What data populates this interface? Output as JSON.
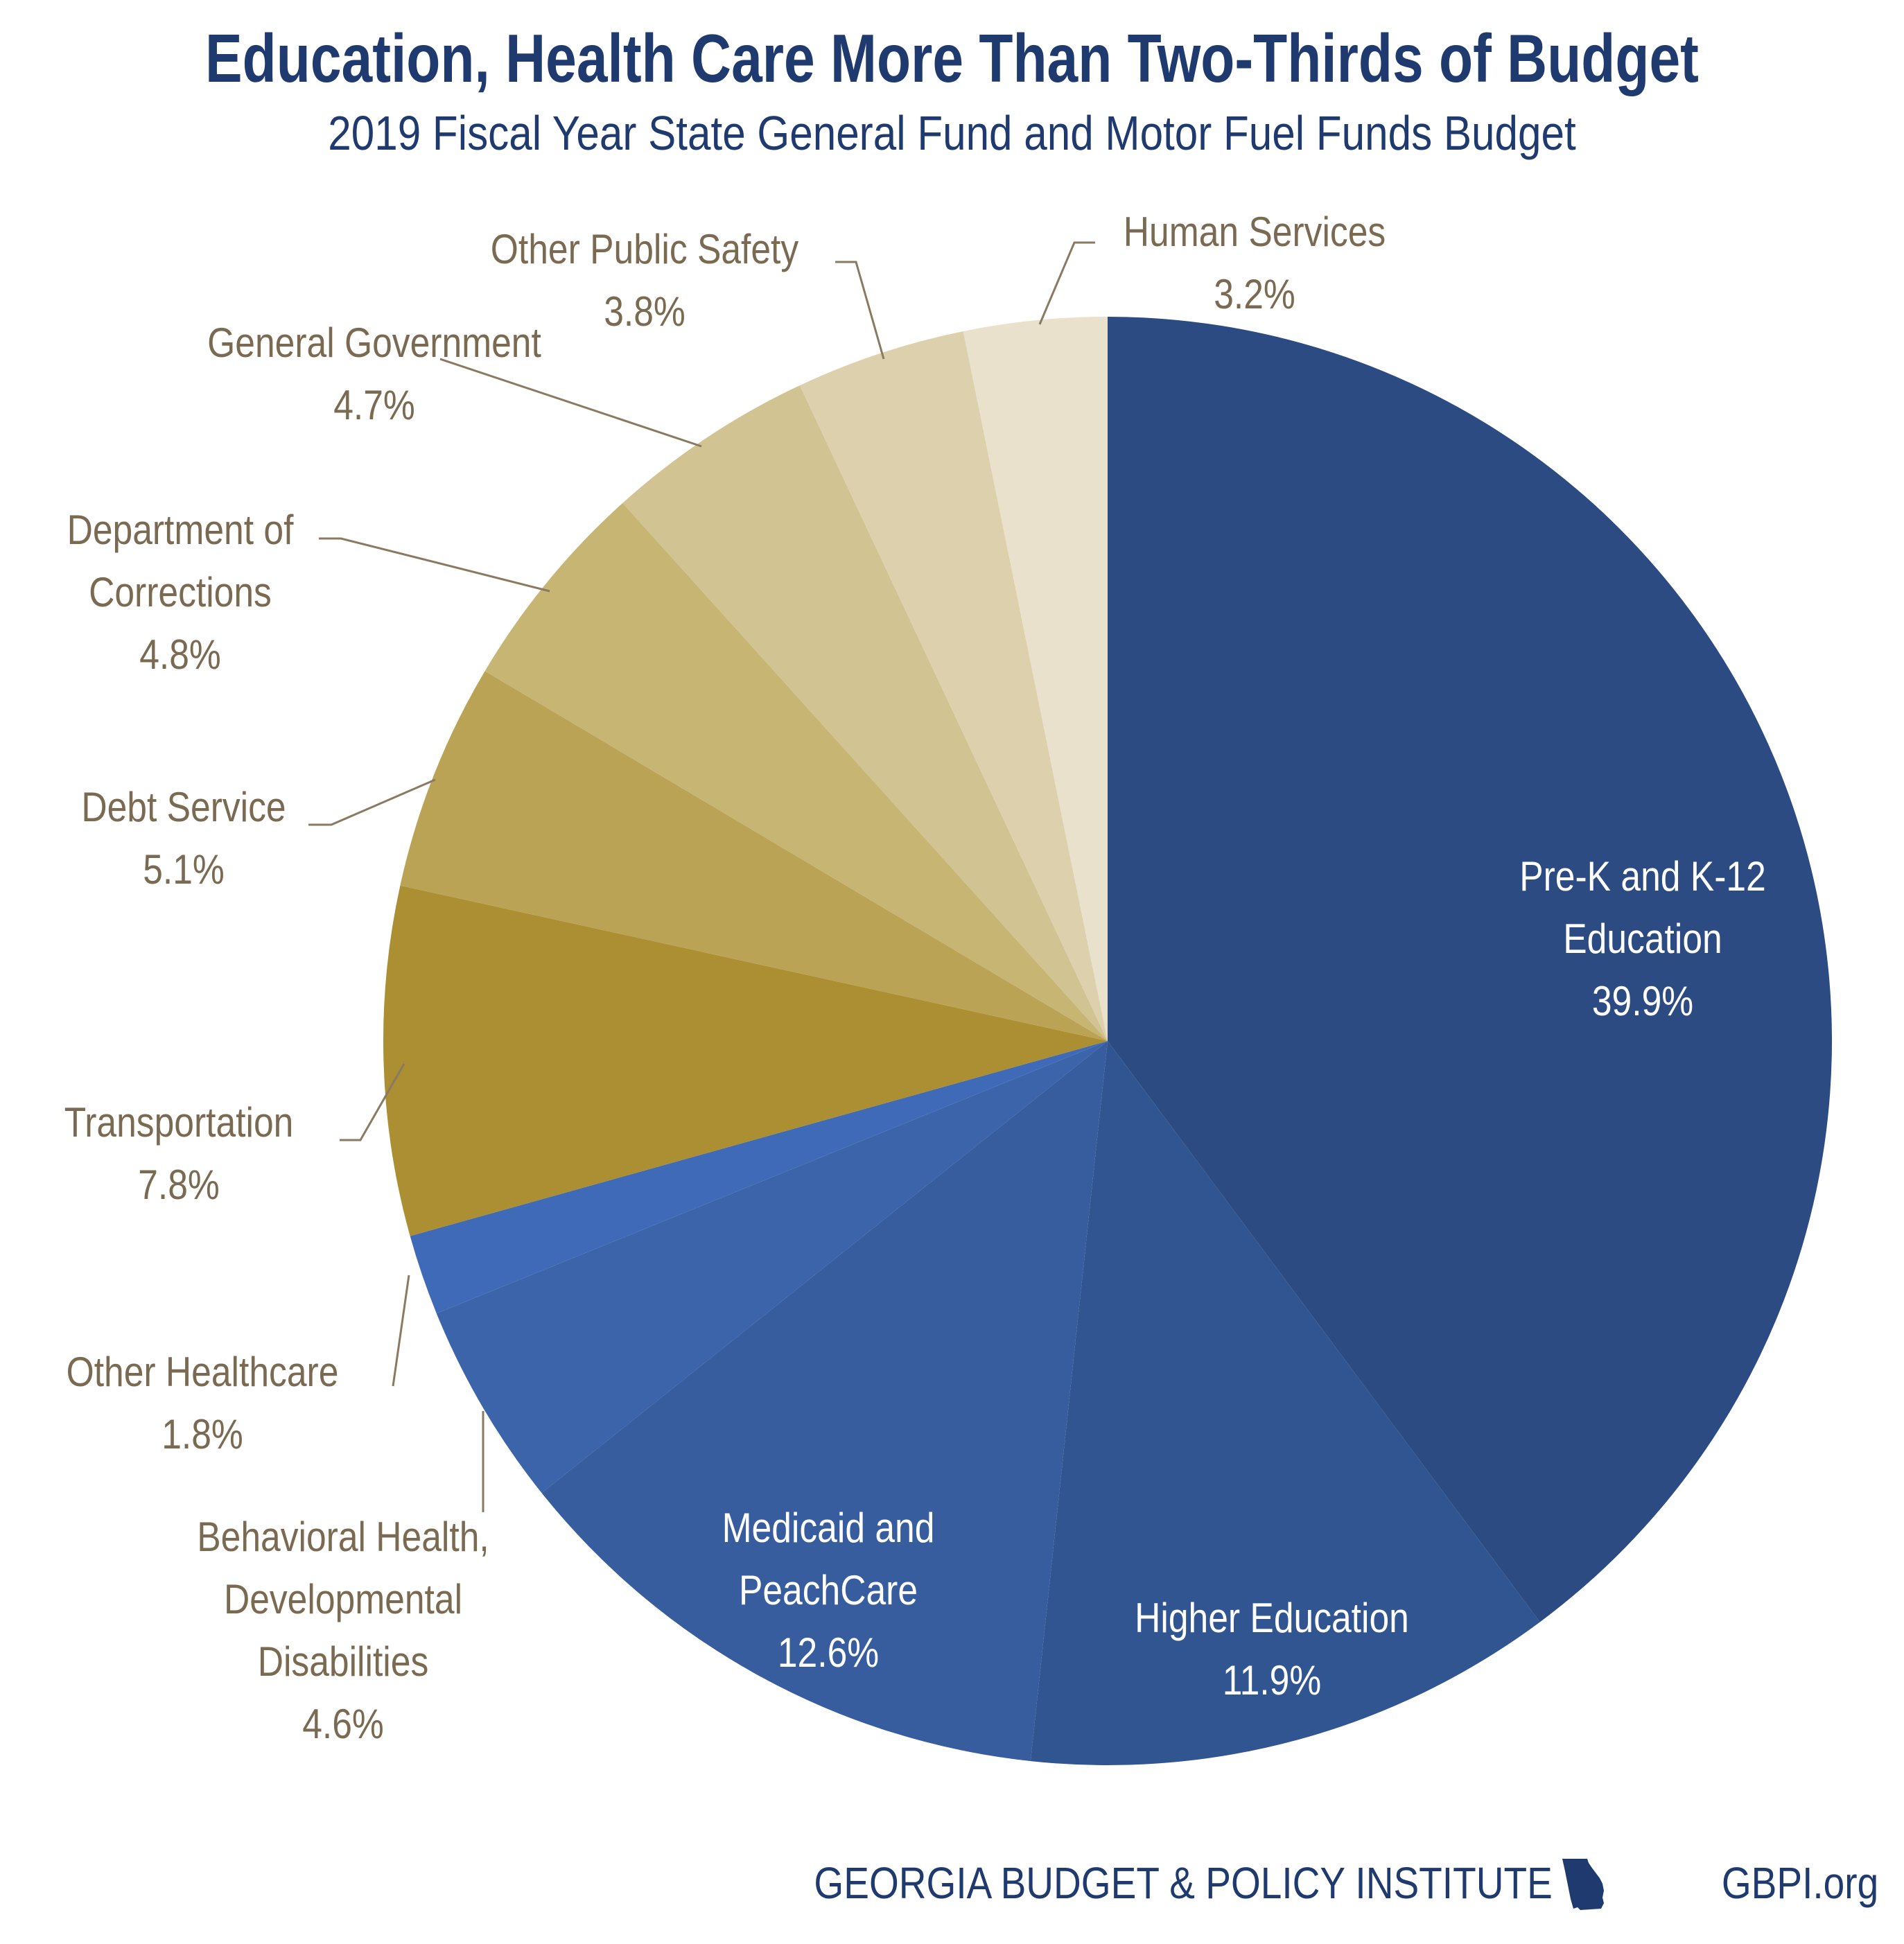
{
  "title": "Education, Health Care More Than Two-Thirds of Budget",
  "subtitle": "2019 Fiscal Year State General Fund and Motor Fuel Funds Budget",
  "footer": {
    "organization": "GEORGIA BUDGET & POLICY INSTITUTE",
    "icon": "georgia-state-icon",
    "website": "GBPI.org"
  },
  "colors": {
    "title": "#1f3a6e",
    "outside_label": "#7a6a52",
    "inside_label": "#ffffff",
    "leader_line": "#8a7a62"
  },
  "chart_data": {
    "type": "pie",
    "start": "top, clockwise",
    "slices": [
      {
        "label": [
          "Pre-K and K-12",
          "Education"
        ],
        "value": 39.9,
        "display": "39.9%",
        "color": "#2c4b83",
        "placement": "inside"
      },
      {
        "label": [
          "Higher Education"
        ],
        "value": 11.9,
        "display": "11.9%",
        "color": "#315590",
        "placement": "inside"
      },
      {
        "label": [
          "Medicaid and",
          "PeachCare"
        ],
        "value": 12.6,
        "display": "12.6%",
        "color": "#375d9e",
        "placement": "inside"
      },
      {
        "label": [
          "Behavioral Health,",
          "Developmental",
          "Disabilities"
        ],
        "value": 4.6,
        "display": "4.6%",
        "color": "#3b64aa",
        "placement": "outside"
      },
      {
        "label": [
          "Other Healthcare"
        ],
        "value": 1.8,
        "display": "1.8%",
        "color": "#3f6ab8",
        "placement": "outside"
      },
      {
        "label": [
          "Transportation"
        ],
        "value": 7.8,
        "display": "7.8%",
        "color": "#ab8f32",
        "placement": "outside"
      },
      {
        "label": [
          "Debt Service"
        ],
        "value": 5.1,
        "display": "5.1%",
        "color": "#bba355",
        "placement": "outside"
      },
      {
        "label": [
          "Department of",
          "Corrections"
        ],
        "value": 4.8,
        "display": "4.8%",
        "color": "#c7b574",
        "placement": "outside"
      },
      {
        "label": [
          "General Government"
        ],
        "value": 4.7,
        "display": "4.7%",
        "color": "#d1c392",
        "placement": "outside"
      },
      {
        "label": [
          "Other Public Safety"
        ],
        "value": 3.8,
        "display": "3.8%",
        "color": "#ddd1ad",
        "placement": "outside"
      },
      {
        "label": [
          "Human Services"
        ],
        "value": 3.2,
        "display": "3.2%",
        "color": "#e9e1cb",
        "placement": "outside"
      }
    ]
  }
}
